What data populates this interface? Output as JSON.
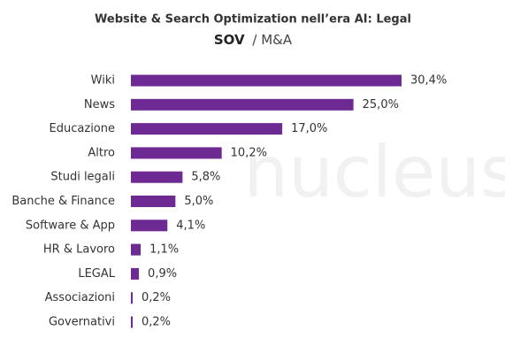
{
  "chart_data": {
    "type": "bar",
    "orientation": "horizontal",
    "title": "Website & Search Optimization nell’era AI: Legal",
    "subtitle": [
      "SOV",
      "/ M&A"
    ],
    "watermark": "nucleus",
    "categories": [
      "Wiki",
      "News",
      "Educazione",
      "Altro",
      "Studi legali",
      "Banche & Finance",
      "Software & App",
      "HR & Lavoro",
      "LEGAL",
      "Associazioni",
      "Governativi"
    ],
    "values": [
      30.4,
      25.0,
      17.0,
      10.2,
      5.8,
      5.0,
      4.1,
      1.1,
      0.9,
      0.2,
      0.2
    ],
    "value_labels": [
      "30,4%",
      "25,0%",
      "17,0%",
      "10,2%",
      "5,8%",
      "5,0%",
      "4,1%",
      "1,1%",
      "0,9%",
      "0,2%",
      "0,2%"
    ],
    "color": "#6e2a93"
  }
}
